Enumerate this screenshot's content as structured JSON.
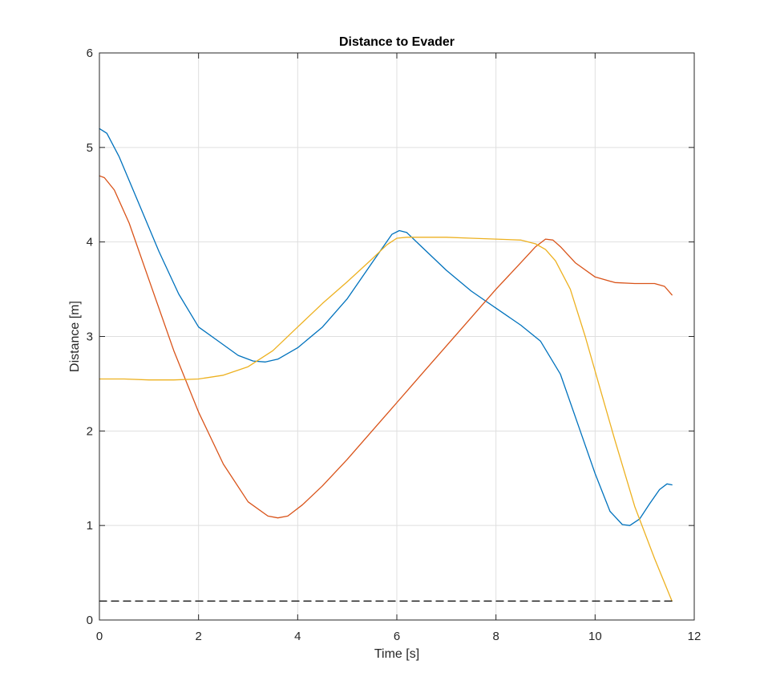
{
  "chart_data": {
    "type": "line",
    "title": "Distance to Evader",
    "xlabel": "Time [s]",
    "ylabel": "Distance [m]",
    "xlim": [
      0,
      12
    ],
    "ylim": [
      0,
      6
    ],
    "xticks": [
      0,
      2,
      4,
      6,
      8,
      10,
      12
    ],
    "yticks": [
      0,
      1,
      2,
      3,
      4,
      5,
      6
    ],
    "grid": true,
    "legend": "none",
    "series": [
      {
        "color": "#0072BD",
        "x": [
          0,
          0.15,
          0.4,
          0.8,
          1.2,
          1.6,
          2.0,
          2.4,
          2.8,
          3.1,
          3.35,
          3.6,
          4.0,
          4.5,
          5.0,
          5.5,
          5.9,
          6.05,
          6.2,
          6.5,
          7.0,
          7.5,
          8.0,
          8.5,
          8.9,
          9.3,
          9.7,
          10.0,
          10.3,
          10.55,
          10.7,
          10.9,
          11.1,
          11.3,
          11.45,
          11.55
        ],
        "values": [
          5.2,
          5.15,
          4.9,
          4.4,
          3.9,
          3.45,
          3.1,
          2.95,
          2.8,
          2.74,
          2.73,
          2.76,
          2.88,
          3.1,
          3.4,
          3.78,
          4.08,
          4.12,
          4.1,
          3.95,
          3.7,
          3.48,
          3.3,
          3.12,
          2.95,
          2.6,
          2.0,
          1.55,
          1.15,
          1.01,
          1.0,
          1.07,
          1.23,
          1.38,
          1.44,
          1.43
        ]
      },
      {
        "color": "#D95319",
        "x": [
          0,
          0.1,
          0.3,
          0.6,
          1.0,
          1.5,
          2.0,
          2.5,
          3.0,
          3.4,
          3.6,
          3.8,
          4.1,
          4.5,
          5.0,
          5.5,
          6.0,
          6.5,
          7.0,
          7.5,
          8.0,
          8.5,
          8.8,
          9.0,
          9.15,
          9.3,
          9.6,
          10.0,
          10.4,
          10.8,
          11.2,
          11.4,
          11.55
        ],
        "values": [
          4.7,
          4.68,
          4.55,
          4.2,
          3.6,
          2.85,
          2.2,
          1.65,
          1.25,
          1.1,
          1.08,
          1.1,
          1.22,
          1.42,
          1.7,
          2.0,
          2.3,
          2.6,
          2.9,
          3.2,
          3.5,
          3.78,
          3.95,
          4.03,
          4.02,
          3.95,
          3.78,
          3.63,
          3.57,
          3.56,
          3.56,
          3.53,
          3.44
        ]
      },
      {
        "color": "#EDB120",
        "x": [
          0,
          0.5,
          1.0,
          1.5,
          2.0,
          2.5,
          3.0,
          3.5,
          4.0,
          4.5,
          5.0,
          5.5,
          5.8,
          6.0,
          6.2,
          6.5,
          7.0,
          7.5,
          8.0,
          8.5,
          8.8,
          9.0,
          9.2,
          9.5,
          9.8,
          10.1,
          10.4,
          10.8,
          11.2,
          11.55
        ],
        "values": [
          2.55,
          2.55,
          2.54,
          2.54,
          2.55,
          2.59,
          2.68,
          2.85,
          3.1,
          3.35,
          3.58,
          3.82,
          3.97,
          4.04,
          4.05,
          4.05,
          4.05,
          4.04,
          4.03,
          4.02,
          3.98,
          3.92,
          3.8,
          3.5,
          3.0,
          2.45,
          1.9,
          1.2,
          0.65,
          0.2
        ]
      },
      {
        "color": "#000000",
        "dashed": true,
        "x": [
          0,
          11.55
        ],
        "values": [
          0.2,
          0.2
        ]
      }
    ]
  }
}
